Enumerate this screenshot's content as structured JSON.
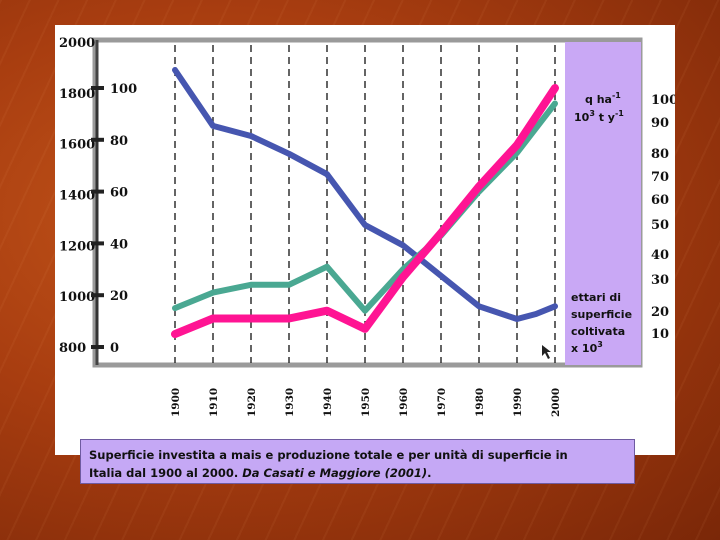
{
  "slide": {
    "caption_line1": "Superficie investita a mais e produzione totale e per unità di superficie in",
    "caption_line2_a": "Italia dal 1900 al 2000. ",
    "caption_line2_b": "Da Casati e Maggiore (2001)",
    "caption_line2_c": "."
  },
  "chart_data": {
    "type": "line",
    "title": "",
    "x": [
      1900,
      1910,
      1920,
      1930,
      1940,
      1950,
      1960,
      1970,
      1980,
      1990,
      2000
    ],
    "x_tick_labels": [
      "1900",
      "1910",
      "1920",
      "1930",
      "1940",
      "1950",
      "1960",
      "1970",
      "1980",
      "1990",
      "2000"
    ],
    "axes": {
      "left_outer": {
        "ticks": [
          "800",
          "1000",
          "1200",
          "1400",
          "1600",
          "1800",
          "2000"
        ],
        "range": [
          800,
          2000
        ]
      },
      "left_inner": {
        "ticks": [
          "0",
          "20",
          "40",
          "60",
          "80",
          "100"
        ],
        "range": [
          0,
          100
        ]
      },
      "right": {
        "ticks": [
          "10",
          "20",
          "30",
          "40",
          "50",
          "60",
          "70",
          "80",
          "90",
          "100"
        ],
        "range": [
          0,
          100
        ]
      }
    },
    "unit_labels": {
      "top_line1": "q ha",
      "top_line1_sup": "-1",
      "top_line2": "10",
      "top_line2_sup": "3",
      "top_line2_b": " t y",
      "top_line2_sup2": "-1",
      "bottom_line1": "ettari di",
      "bottom_line2": "superficie",
      "bottom_line3": "coltivata",
      "bottom_line4": "x 10",
      "bottom_line4_sup": "3"
    },
    "grid": "vertical dashed",
    "series": [
      {
        "axis": "left_outer",
        "color": "#4656b0",
        "x": [
          1900,
          1910,
          1920,
          1930,
          1940,
          1950,
          1960,
          1970,
          1980,
          1990,
          1995,
          2000
        ],
        "values": [
          1890,
          1670,
          1630,
          1560,
          1480,
          1280,
          1200,
          1080,
          960,
          910,
          930,
          960
        ]
      },
      {
        "axis": "left_inner",
        "color": "#4aa892",
        "x": [
          1900,
          1910,
          1920,
          1930,
          1940,
          1950,
          1960,
          1970,
          1980,
          1990,
          2000
        ],
        "values": [
          15,
          21,
          24,
          24,
          31,
          14,
          30,
          43,
          60,
          75,
          94
        ]
      },
      {
        "axis": "left_inner",
        "color": "#ff1493",
        "x": [
          1900,
          1910,
          1920,
          1930,
          1940,
          1950,
          1960,
          1970,
          1980,
          1990,
          2000
        ],
        "values": [
          5,
          11,
          11,
          11,
          14,
          7,
          27,
          44,
          62,
          78,
          100
        ]
      }
    ],
    "colors": {
      "unit_panel": "#c9a8f5",
      "caption_bg": "#c5a8f5",
      "frame": "#9a9a9a"
    }
  }
}
